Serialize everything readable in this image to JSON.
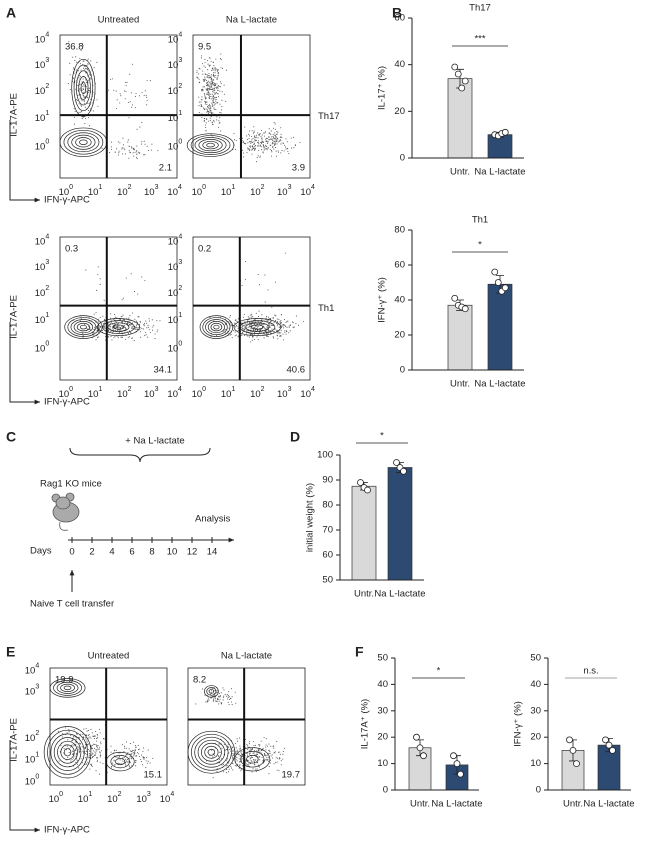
{
  "panel_letters": [
    "A",
    "B",
    "C",
    "D",
    "E",
    "F"
  ],
  "flow_A": {
    "columns": [
      "Untreated",
      "Na L-lactate"
    ],
    "y_label": "IL-17A-PE",
    "x_label": "IFN-γ-APC",
    "tick_base": "10",
    "tick_exponents": [
      0,
      1,
      2,
      3,
      4
    ],
    "rows": [
      {
        "name": "Th17",
        "plots": [
          {
            "upper_left": 36.8,
            "lower_right": 2.1
          },
          {
            "upper_left": 9.5,
            "lower_right": 3.9
          }
        ]
      },
      {
        "name": "Th1",
        "plots": [
          {
            "upper_left": 0.3,
            "lower_right": 34.1
          },
          {
            "upper_left": 0.2,
            "lower_right": 40.6
          }
        ]
      }
    ]
  },
  "flow_E": {
    "columns": [
      "Untreated",
      "Na L-lactate"
    ],
    "y_label": "IL-17A-PE",
    "x_label": "IFN-γ-APC",
    "tick_base": "10",
    "tick_exponents": [
      0,
      1,
      2,
      3,
      4
    ],
    "plots": [
      {
        "upper_left": 19.9,
        "lower_right": 15.1
      },
      {
        "upper_left": 8.2,
        "lower_right": 19.7
      }
    ]
  },
  "schematic": {
    "treatment": "+ Na L-lactate",
    "mice": "Rag1 KO mice",
    "analysis": "Analysis",
    "axis_label": "Days",
    "days": [
      0,
      2,
      4,
      6,
      8,
      10,
      12,
      14
    ],
    "transfer": "Naive T cell transfer"
  },
  "chart_data": [
    {
      "type": "bar",
      "title": "Th17",
      "y_label": "IL-17⁺ (%)",
      "categories": [
        "Untr.",
        "Na L-lactate"
      ],
      "values": [
        34,
        10
      ],
      "errors": [
        4,
        1
      ],
      "points": [
        [
          39,
          36,
          30,
          33
        ],
        [
          10,
          9.5,
          10.5,
          11
        ]
      ],
      "colors": [
        "#d9d9d9",
        "#2d4a73"
      ],
      "ylim": [
        0,
        60
      ],
      "yticks": [
        0,
        20,
        40,
        60
      ],
      "significance": "***"
    },
    {
      "type": "bar",
      "title": "Th1",
      "y_label": "IFN-γ⁺ (%)",
      "categories": [
        "Untr.",
        "Na L-lactate"
      ],
      "values": [
        37,
        49
      ],
      "errors": [
        3,
        5
      ],
      "points": [
        [
          41,
          37,
          36,
          35
        ],
        [
          56,
          50,
          45,
          47
        ]
      ],
      "colors": [
        "#d9d9d9",
        "#2d4a73"
      ],
      "ylim": [
        0,
        80
      ],
      "yticks": [
        0,
        20,
        40,
        60,
        80
      ],
      "significance": "*"
    },
    {
      "type": "bar",
      "y_label": "initial weight (%)",
      "categories": [
        "Untr.",
        "Na L-lactate"
      ],
      "values": [
        87.5,
        95
      ],
      "errors": [
        1.5,
        2
      ],
      "points": [
        [
          89,
          87,
          86
        ],
        [
          97,
          95,
          93.5
        ]
      ],
      "colors": [
        "#d9d9d9",
        "#2d4a73"
      ],
      "ylim": [
        50,
        100
      ],
      "yticks": [
        50,
        60,
        70,
        80,
        90,
        100
      ],
      "significance": "*"
    },
    {
      "type": "bar",
      "y_label": "IL-17A⁺ (%)",
      "categories": [
        "Untr.",
        "Na L-lactate"
      ],
      "values": [
        16,
        9.5
      ],
      "errors": [
        3,
        3.5
      ],
      "points": [
        [
          20,
          16,
          13
        ],
        [
          13,
          10,
          6
        ]
      ],
      "colors": [
        "#d9d9d9",
        "#2d4a73"
      ],
      "ylim": [
        0,
        50
      ],
      "yticks": [
        0,
        10,
        20,
        30,
        40,
        50
      ],
      "significance": "*"
    },
    {
      "type": "bar",
      "y_label": "IFN-γ⁺ (%)",
      "categories": [
        "Untr.",
        "Na L-lactate"
      ],
      "values": [
        15,
        17
      ],
      "errors": [
        4,
        2.5
      ],
      "points": [
        [
          19,
          15,
          10
        ],
        [
          19,
          17,
          15
        ]
      ],
      "colors": [
        "#d9d9d9",
        "#2d4a73"
      ],
      "ylim": [
        0,
        50
      ],
      "yticks": [
        0,
        10,
        20,
        30,
        40,
        50
      ],
      "significance": "n.s."
    }
  ]
}
